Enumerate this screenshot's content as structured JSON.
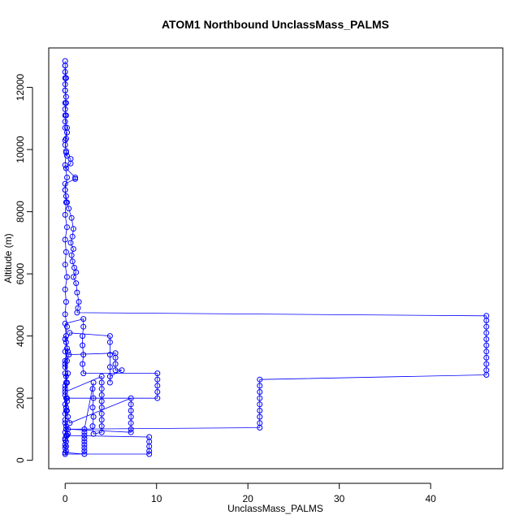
{
  "chart_data": {
    "type": "scatter",
    "title": "ATOM1 Northbound UnclassMass_PALMS",
    "xlabel": "UnclassMass_PALMS",
    "ylabel": "Altitude (m)",
    "xlim": [
      -1.8,
      47.9
    ],
    "ylim": [
      -270,
      13270
    ],
    "x_ticks": [
      0,
      10,
      20,
      30,
      40
    ],
    "y_ticks": [
      0,
      2000,
      4000,
      6000,
      8000,
      10000,
      12000
    ],
    "x_tick_labels": [
      "0",
      "10",
      "20",
      "30",
      "40"
    ],
    "y_tick_labels": [
      "0",
      "2000",
      "4000",
      "6000",
      "8000",
      "10000",
      "12000"
    ],
    "grid": false,
    "legend": "none",
    "series": [
      {
        "color": "#0000ff",
        "marker": "open-circle",
        "connected": true,
        "points": [
          [
            0.0,
            12850
          ],
          [
            0.0,
            12700
          ],
          [
            0.0,
            12500
          ],
          [
            0.0,
            12300
          ],
          [
            0.0,
            12100
          ],
          [
            0.0,
            11900
          ],
          [
            0.1,
            11700
          ],
          [
            0.0,
            11500
          ],
          [
            0.0,
            11300
          ],
          [
            0.1,
            11100
          ],
          [
            0.0,
            10900
          ],
          [
            0.0,
            10700
          ],
          [
            0.2,
            10550
          ],
          [
            0.1,
            10350
          ],
          [
            0.0,
            10150
          ],
          [
            0.1,
            9950
          ],
          [
            0.2,
            9800
          ],
          [
            0.6,
            9700
          ],
          [
            0.6,
            9550
          ],
          [
            0.1,
            9400
          ],
          [
            1.1,
            9100
          ],
          [
            1.1,
            9050
          ],
          [
            0.0,
            8900
          ],
          [
            0.0,
            8700
          ],
          [
            0.1,
            8500
          ],
          [
            0.2,
            8300
          ],
          [
            0.4,
            8100
          ],
          [
            0.7,
            7800
          ],
          [
            0.9,
            7450
          ],
          [
            0.8,
            7200
          ],
          [
            0.6,
            7000
          ],
          [
            0.9,
            6800
          ],
          [
            0.7,
            6600
          ],
          [
            0.8,
            6400
          ],
          [
            1.0,
            6200
          ],
          [
            1.2,
            6050
          ],
          [
            0.9,
            5900
          ],
          [
            1.2,
            5700
          ],
          [
            1.3,
            5400
          ],
          [
            1.5,
            5100
          ],
          [
            1.4,
            4900
          ],
          [
            1.3,
            4750
          ],
          [
            46.1,
            4650
          ],
          [
            46.1,
            4500
          ],
          [
            46.1,
            4300
          ],
          [
            46.1,
            4100
          ],
          [
            46.1,
            3900
          ],
          [
            46.1,
            3700
          ],
          [
            46.1,
            3500
          ],
          [
            46.1,
            3300
          ],
          [
            46.1,
            3100
          ],
          [
            46.1,
            2900
          ],
          [
            46.1,
            2750
          ],
          [
            21.3,
            2600
          ],
          [
            21.3,
            2400
          ],
          [
            21.3,
            2200
          ],
          [
            21.3,
            2000
          ],
          [
            21.3,
            1800
          ],
          [
            21.3,
            1600
          ],
          [
            21.3,
            1400
          ],
          [
            21.3,
            1200
          ],
          [
            21.3,
            1050
          ],
          [
            0.1,
            1000
          ],
          [
            0.0,
            900
          ],
          [
            0.2,
            800
          ],
          [
            0.0,
            700
          ],
          [
            0.1,
            600
          ],
          [
            0.0,
            500
          ],
          [
            0.0,
            400
          ],
          [
            0.1,
            300
          ],
          [
            0.0,
            200
          ],
          [
            9.2,
            200
          ],
          [
            9.2,
            300
          ],
          [
            9.2,
            450
          ],
          [
            9.2,
            600
          ],
          [
            9.2,
            750
          ],
          [
            0.1,
            800
          ],
          [
            0.0,
            1200
          ],
          [
            0.2,
            1600
          ],
          [
            0.1,
            2000
          ],
          [
            0.0,
            2400
          ],
          [
            0.3,
            2800
          ],
          [
            0.0,
            3200
          ],
          [
            0.2,
            3600
          ],
          [
            0.1,
            4000
          ],
          [
            0.0,
            4400
          ],
          [
            2.0,
            4550
          ],
          [
            2.0,
            4300
          ],
          [
            1.9,
            4000
          ],
          [
            1.9,
            3700
          ],
          [
            2.0,
            3400
          ],
          [
            1.9,
            3100
          ],
          [
            2.0,
            2800
          ],
          [
            10.1,
            2800
          ],
          [
            10.1,
            2600
          ],
          [
            10.1,
            2400
          ],
          [
            10.1,
            2200
          ],
          [
            10.1,
            2000
          ],
          [
            0.2,
            2000
          ],
          [
            0.0,
            1800
          ],
          [
            0.1,
            1600
          ],
          [
            0.3,
            1400
          ],
          [
            0.5,
            1200
          ],
          [
            7.2,
            2000
          ],
          [
            7.2,
            1800
          ],
          [
            7.2,
            1600
          ],
          [
            7.2,
            1400
          ],
          [
            7.2,
            1200
          ],
          [
            7.2,
            1000
          ],
          [
            7.2,
            900
          ],
          [
            0.3,
            1000
          ],
          [
            0.0,
            1300
          ],
          [
            0.1,
            1700
          ],
          [
            0.0,
            2100
          ],
          [
            0.2,
            2500
          ],
          [
            0.0,
            3000
          ],
          [
            0.4,
            3400
          ],
          [
            5.5,
            3450
          ],
          [
            5.5,
            3300
          ],
          [
            5.5,
            3100
          ],
          [
            5.5,
            2900
          ],
          [
            6.2,
            2900
          ],
          [
            4.9,
            2700
          ],
          [
            4.9,
            2500
          ],
          [
            4.9,
            3000
          ],
          [
            4.9,
            3400
          ],
          [
            4.9,
            3800
          ],
          [
            4.9,
            4000
          ],
          [
            0.5,
            4100
          ],
          [
            0.1,
            3800
          ],
          [
            0.0,
            3500
          ],
          [
            0.2,
            3200
          ],
          [
            0.0,
            2800
          ],
          [
            0.1,
            2500
          ],
          [
            0.0,
            2200
          ],
          [
            4.0,
            2700
          ],
          [
            4.0,
            2500
          ],
          [
            4.0,
            2300
          ],
          [
            4.0,
            2100
          ],
          [
            4.0,
            1900
          ],
          [
            4.0,
            1700
          ],
          [
            4.0,
            1500
          ],
          [
            4.0,
            1300
          ],
          [
            4.0,
            1100
          ],
          [
            4.0,
            900
          ],
          [
            3.1,
            850
          ],
          [
            3.0,
            1100
          ],
          [
            3.1,
            1400
          ],
          [
            3.0,
            1700
          ],
          [
            3.1,
            2000
          ],
          [
            3.0,
            2300
          ],
          [
            3.1,
            2500
          ],
          [
            2.1,
            1000
          ],
          [
            2.1,
            900
          ],
          [
            2.1,
            800
          ],
          [
            2.1,
            700
          ],
          [
            2.1,
            600
          ],
          [
            2.1,
            500
          ],
          [
            2.1,
            400
          ],
          [
            2.1,
            300
          ],
          [
            2.1,
            200
          ],
          [
            0.0,
            250
          ],
          [
            0.1,
            450
          ],
          [
            0.0,
            650
          ],
          [
            0.3,
            850
          ],
          [
            0.1,
            1100
          ],
          [
            0.0,
            1500
          ],
          [
            0.2,
            1900
          ],
          [
            0.0,
            2300
          ],
          [
            0.1,
            2700
          ],
          [
            0.0,
            3100
          ],
          [
            0.3,
            3500
          ],
          [
            0.0,
            3900
          ],
          [
            0.2,
            4300
          ],
          [
            0.0,
            4700
          ],
          [
            0.1,
            5100
          ],
          [
            0.0,
            5500
          ],
          [
            0.2,
            5900
          ],
          [
            0.0,
            6300
          ],
          [
            0.1,
            6700
          ],
          [
            0.0,
            7100
          ],
          [
            0.2,
            7500
          ],
          [
            0.0,
            7900
          ],
          [
            0.1,
            8300
          ],
          [
            0.0,
            8700
          ],
          [
            0.2,
            9100
          ],
          [
            0.0,
            9500
          ],
          [
            0.1,
            9900
          ],
          [
            0.0,
            10300
          ],
          [
            0.2,
            10700
          ],
          [
            0.0,
            11100
          ],
          [
            0.1,
            11500
          ],
          [
            0.0,
            11900
          ],
          [
            0.1,
            12300
          ],
          [
            0.0,
            12700
          ]
        ]
      }
    ]
  }
}
